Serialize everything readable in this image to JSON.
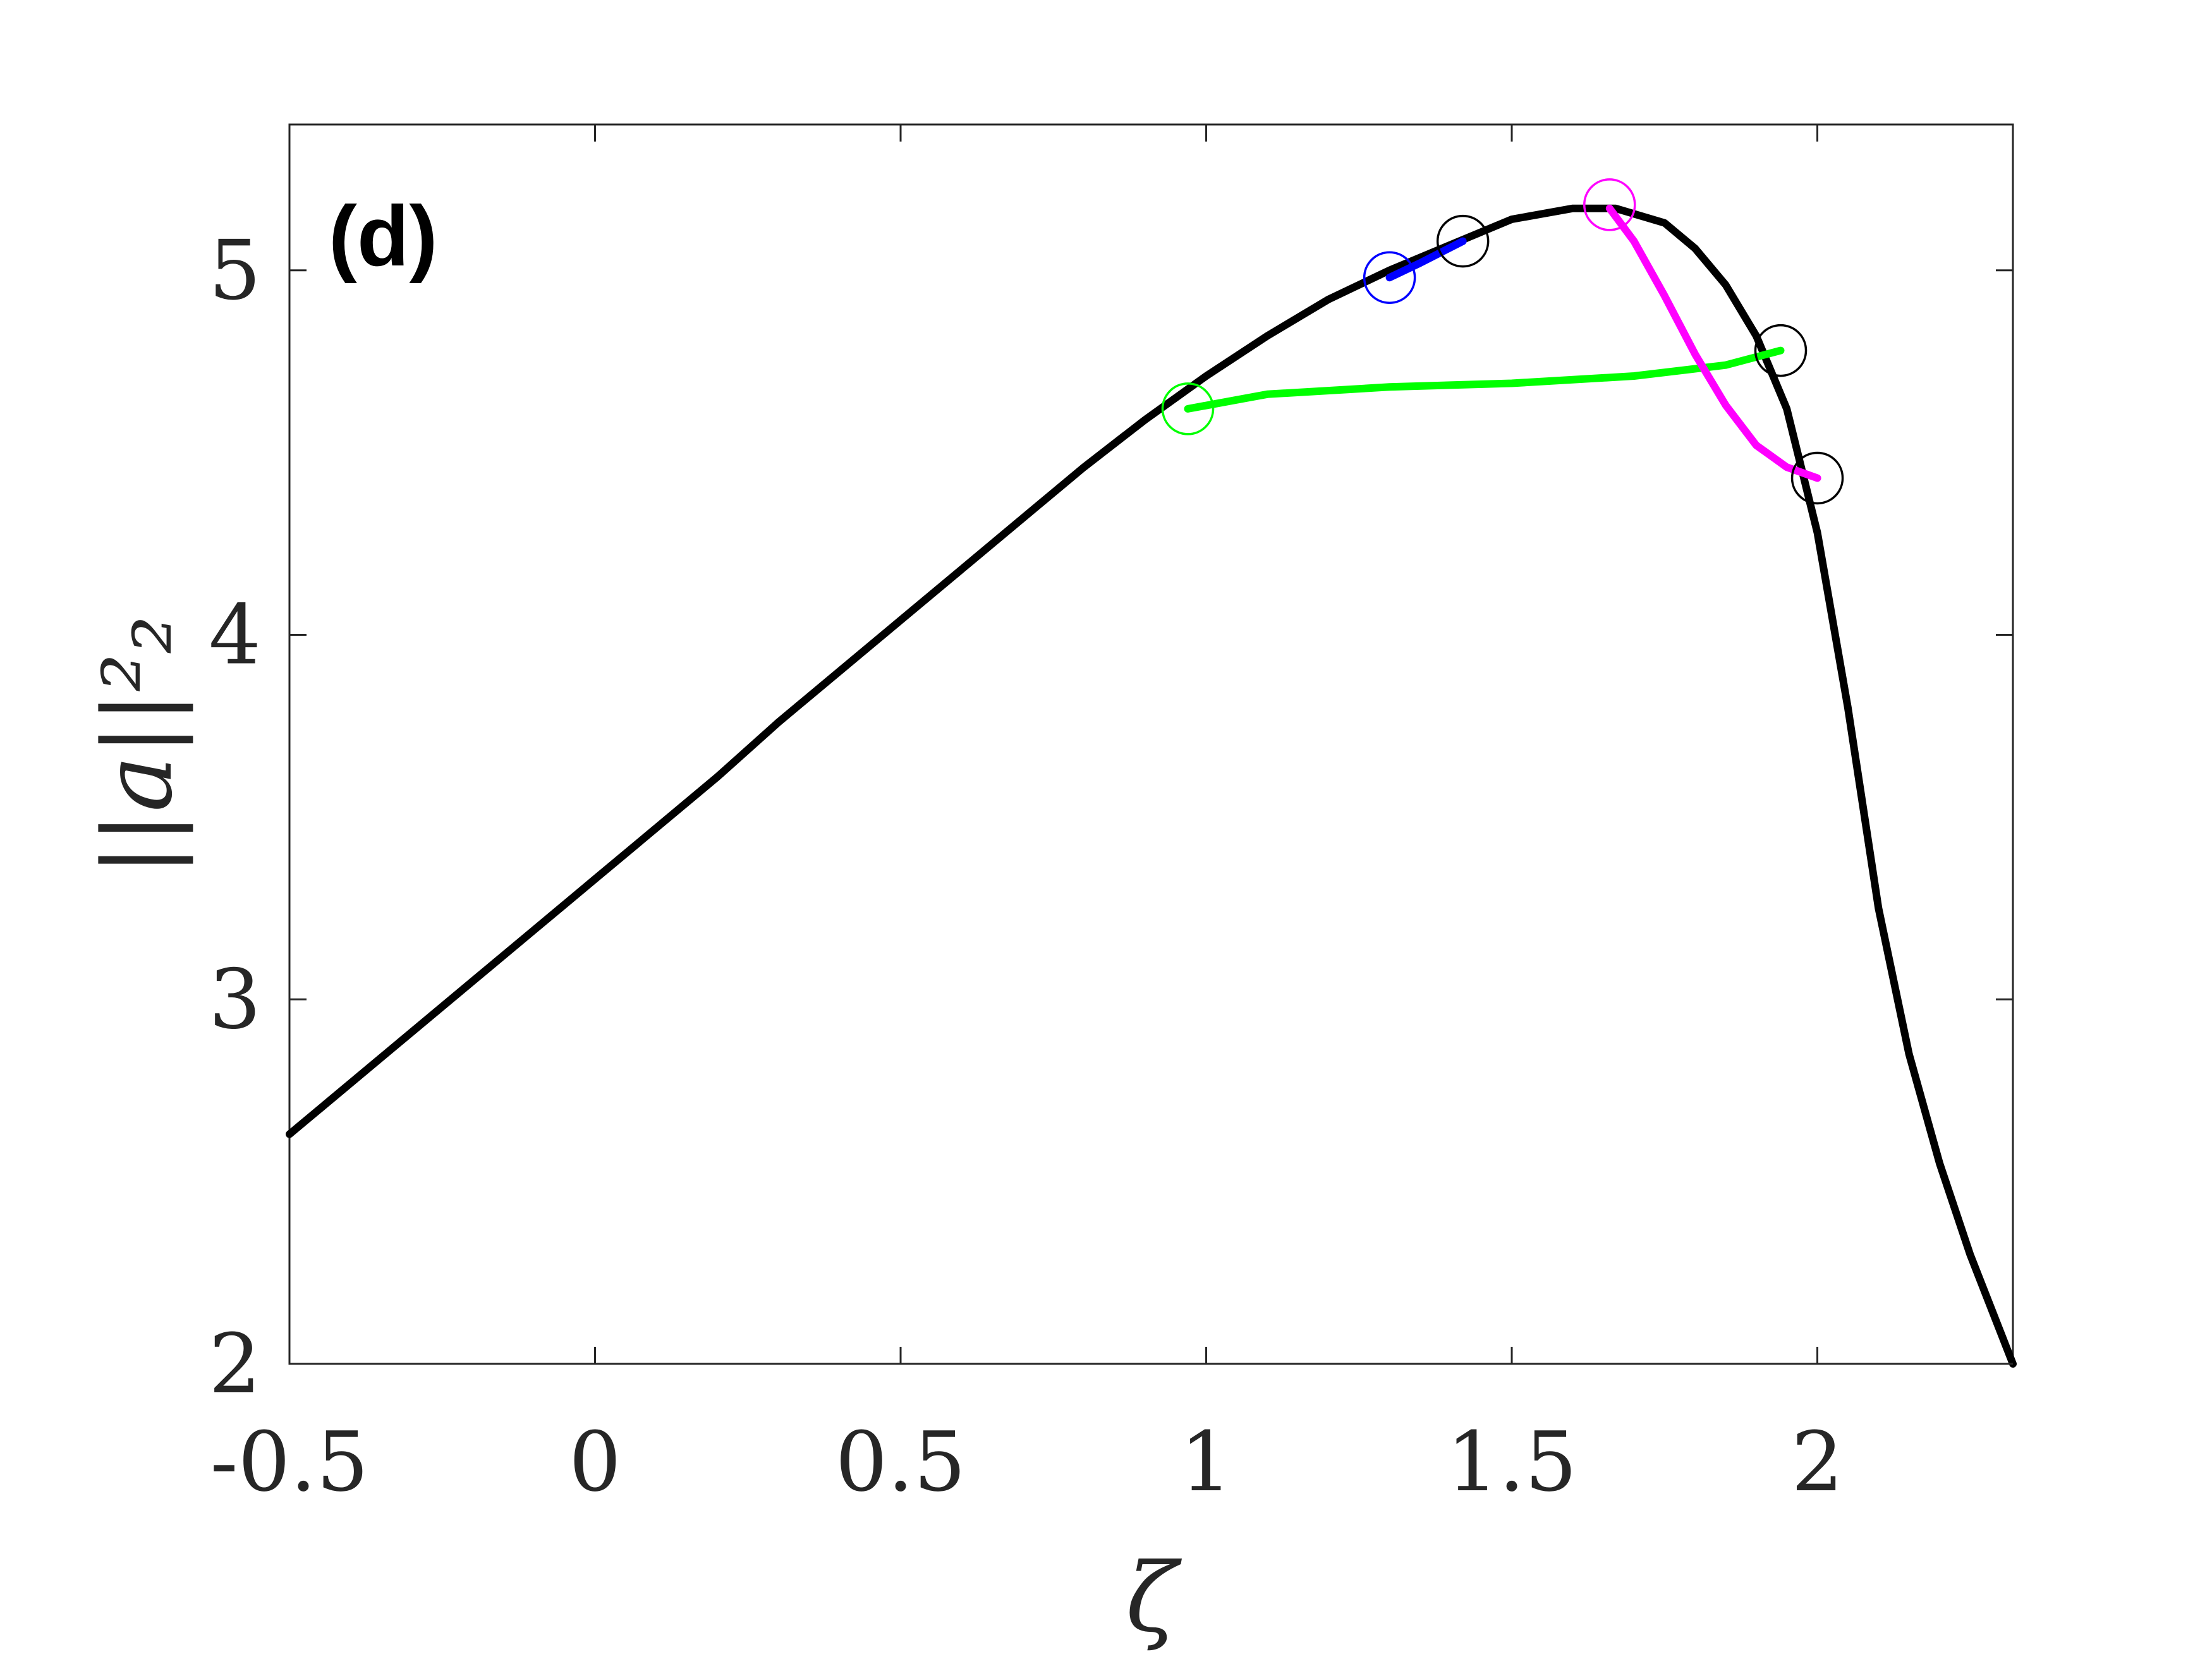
{
  "chart_data": {
    "type": "line",
    "panel_label": "(d)",
    "xlabel": "ζ",
    "ylabel": "||a||²₂",
    "xlim": [
      -0.5,
      2.32
    ],
    "ylim": [
      2,
      5.4
    ],
    "x_ticks": [
      -0.5,
      0,
      0.5,
      1,
      1.5,
      2
    ],
    "x_tick_labels": [
      "-0.5",
      "0",
      "0.5",
      "1",
      "1.5",
      "2"
    ],
    "y_ticks": [
      2,
      3,
      4,
      5
    ],
    "y_tick_labels": [
      "2",
      "3",
      "4",
      "5"
    ],
    "grid": false,
    "series": [
      {
        "color": "#000000",
        "x": [
          -0.5,
          -0.4,
          -0.3,
          -0.2,
          -0.1,
          0.0,
          0.1,
          0.2,
          0.3,
          0.4,
          0.5,
          0.6,
          0.7,
          0.8,
          0.9,
          1.0,
          1.1,
          1.2,
          1.3,
          1.4,
          1.5,
          1.6,
          1.67,
          1.75,
          1.8,
          1.85,
          1.9,
          1.95,
          2.0,
          2.05,
          2.1,
          2.15,
          2.2,
          2.25,
          2.32
        ],
        "y": [
          2.63,
          2.77,
          2.91,
          3.05,
          3.19,
          3.33,
          3.47,
          3.61,
          3.76,
          3.9,
          4.04,
          4.18,
          4.32,
          4.46,
          4.59,
          4.71,
          4.82,
          4.92,
          5.0,
          5.07,
          5.14,
          5.17,
          5.17,
          5.13,
          5.06,
          4.96,
          4.82,
          4.62,
          4.28,
          3.8,
          3.25,
          2.85,
          2.55,
          2.3,
          2.0
        ]
      },
      {
        "color": "#0000ff",
        "x": [
          1.3,
          1.35,
          1.42
        ],
        "y": [
          4.98,
          5.02,
          5.08
        ]
      },
      {
        "color": "#00ff00",
        "x": [
          0.97,
          1.1,
          1.3,
          1.5,
          1.7,
          1.85,
          1.94
        ],
        "y": [
          4.62,
          4.66,
          4.68,
          4.69,
          4.71,
          4.74,
          4.78
        ]
      },
      {
        "color": "#ff00ff",
        "x": [
          1.66,
          1.7,
          1.75,
          1.8,
          1.85,
          1.9,
          1.95,
          2.0
        ],
        "y": [
          5.17,
          5.08,
          4.93,
          4.77,
          4.63,
          4.52,
          4.46,
          4.43
        ]
      }
    ],
    "markers": [
      {
        "x": 0.97,
        "y": 4.62,
        "color": "#00ff00"
      },
      {
        "x": 1.3,
        "y": 4.98,
        "color": "#0000ff"
      },
      {
        "x": 1.42,
        "y": 5.08,
        "color": "#000000"
      },
      {
        "x": 1.66,
        "y": 5.18,
        "color": "#ff00ff"
      },
      {
        "x": 1.94,
        "y": 4.78,
        "color": "#000000"
      },
      {
        "x": 2.0,
        "y": 4.43,
        "color": "#000000"
      }
    ]
  }
}
